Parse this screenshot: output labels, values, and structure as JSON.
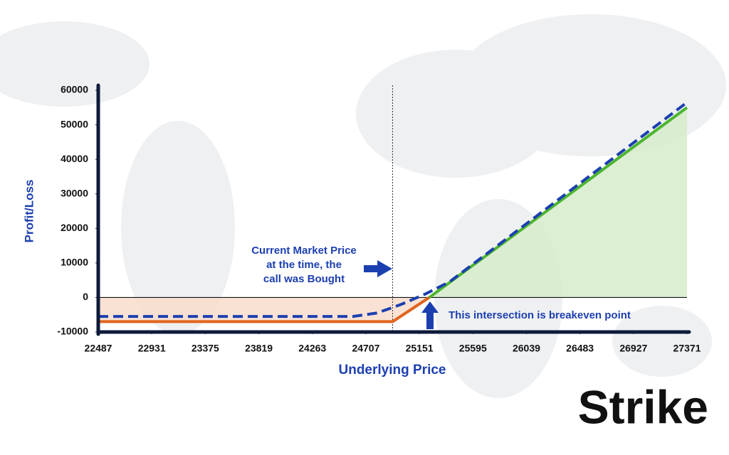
{
  "chart_data": {
    "type": "line",
    "x_label": "Underlying Price",
    "y_label": "Profit/Loss",
    "xlim": [
      22487,
      27371
    ],
    "ylim": [
      -10000,
      60000
    ],
    "xticks": [
      22487,
      22931,
      23375,
      23819,
      24263,
      24707,
      25151,
      25595,
      26039,
      26483,
      26927,
      27371
    ],
    "yticks": [
      -10000,
      0,
      10000,
      20000,
      30000,
      40000,
      50000,
      60000
    ],
    "marker_x": 24929,
    "series": [
      {
        "color": "#e0641e",
        "fill_color": "#f8ddcc",
        "x": [
          22487,
          24929,
          25233
        ],
        "values": [
          -7000,
          -7000,
          0
        ]
      },
      {
        "color": "#4cb52f",
        "fill_color": "#d6ecca",
        "x": [
          25233,
          27371
        ],
        "values": [
          0,
          55000
        ]
      },
      {
        "color": "#1c3fb0",
        "dashed": true,
        "x": [
          22487,
          24600,
          24800,
          25000,
          25200,
          25400,
          27371
        ],
        "values": [
          -5500,
          -5500,
          -4500,
          -2000,
          1000,
          4500,
          56500
        ]
      }
    ],
    "annotations": [
      {
        "lines": [
          "Current Market Price",
          "at the time, the",
          "call was Bought"
        ]
      },
      {
        "lines": [
          "This intersection is breakeven point"
        ]
      }
    ],
    "logo": "Strike"
  }
}
